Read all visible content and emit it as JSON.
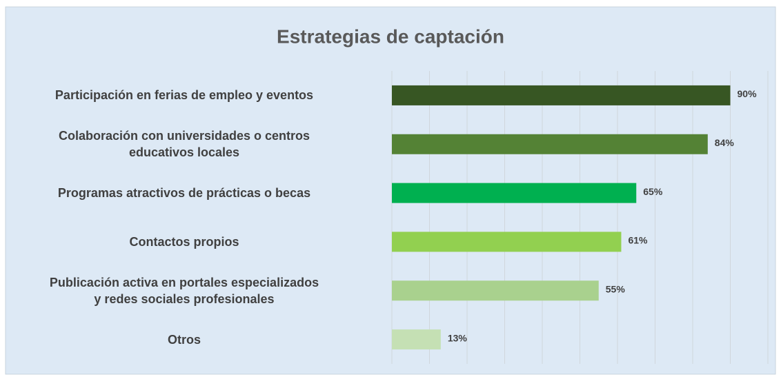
{
  "chart_data": {
    "type": "bar",
    "orientation": "horizontal",
    "title": "Estrategias de captación",
    "categories": [
      "Participación en ferias de empleo y eventos",
      "Colaboración con universidades o centros\neducativos locales",
      "Programas atractivos de prácticas o becas",
      "Contactos propios",
      "Publicación activa en portales especializados\ny redes sociales profesionales",
      "Otros"
    ],
    "values": [
      90,
      84,
      65,
      61,
      55,
      13
    ],
    "value_labels": [
      "90%",
      "84%",
      "65%",
      "61%",
      "55%",
      "13%"
    ],
    "colors": [
      "#375623",
      "#548235",
      "#00b050",
      "#92d050",
      "#a9d18e",
      "#c5e0b4"
    ],
    "xlim": [
      0,
      100
    ],
    "xticks": [
      0,
      10,
      20,
      30,
      40,
      50,
      60,
      70,
      80,
      90,
      100
    ],
    "grid": true
  }
}
